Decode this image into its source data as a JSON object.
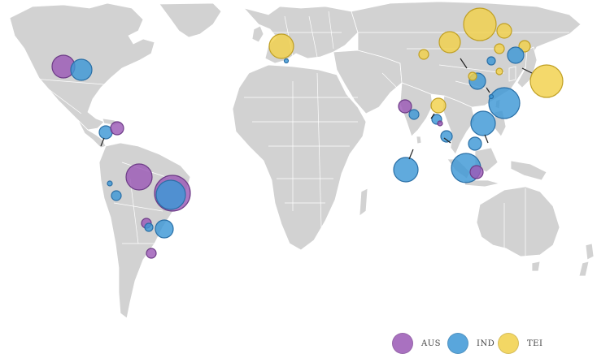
{
  "legend": [
    {
      "code": "AUS",
      "color": "#9b59b6"
    },
    {
      "code": "IND",
      "color": "#3d97d6"
    },
    {
      "code": "TEI",
      "color": "#f2d14a"
    }
  ],
  "stroke_colors": {
    "AUS": "#6d3c87",
    "IND": "#2a6fa6",
    "TEI": "#c0a024"
  },
  "map_style": {
    "land": "#d2d2d2",
    "border": "#ffffff",
    "background": "#ffffff"
  },
  "icons": [
    "circle-marker"
  ]
}
